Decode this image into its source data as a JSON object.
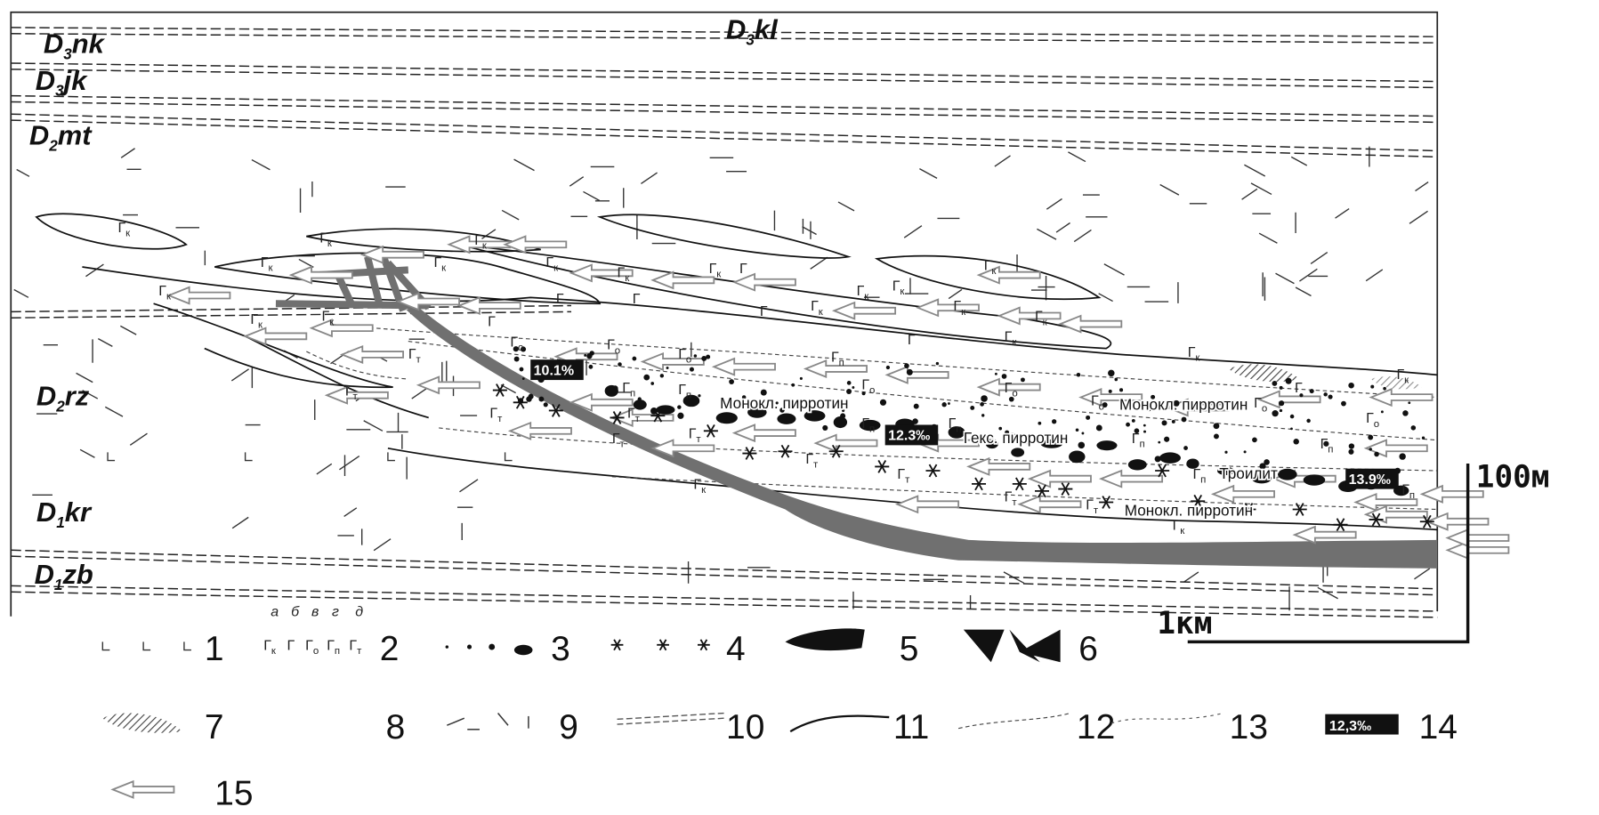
{
  "formations": [
    {
      "base": "D",
      "index": "3",
      "code": "kl"
    },
    {
      "base": "D",
      "index": "3",
      "code": "nk"
    },
    {
      "base": "D",
      "index": "3",
      "code": "jk"
    },
    {
      "base": "D",
      "index": "2",
      "code": "mt"
    },
    {
      "base": "D",
      "index": "2",
      "code": "rz"
    },
    {
      "base": "D",
      "index": "1",
      "code": "kr"
    },
    {
      "base": "D",
      "index": "1",
      "code": "zb"
    }
  ],
  "rock_symbol": "Г",
  "rock_subscripts": [
    "к",
    "о",
    "п",
    "т"
  ],
  "mineral_labels": [
    "Монокл. пирротин",
    "Гекс. пирротин",
    "Монокл. пирротин",
    "Троилит",
    "Монокл. пирротин"
  ],
  "isotope_labels": [
    "10.1%",
    "12.3‰",
    "13.9‰"
  ],
  "legend": {
    "numbers": [
      "1",
      "2",
      "3",
      "4",
      "5",
      "6",
      "7",
      "8",
      "9",
      "10",
      "11",
      "12",
      "13",
      "14",
      "15"
    ],
    "variant_letters": [
      "а",
      "б",
      "в",
      "г",
      "д"
    ],
    "sample_isotope": "12,3‰"
  },
  "scale": {
    "vertical": "100м",
    "horizontal": "1км"
  }
}
